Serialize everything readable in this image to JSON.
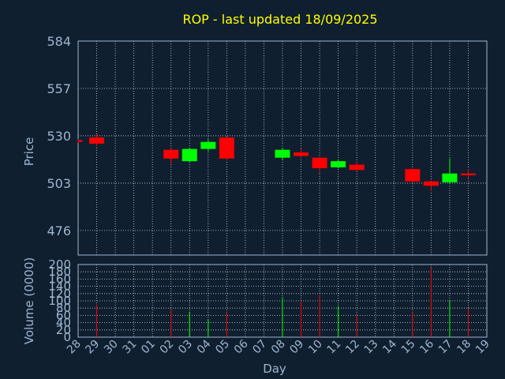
{
  "chart_data": {
    "type": "candlestick",
    "title": "ROP - last updated 18/09/2025",
    "xlabel": "Day",
    "colors": {
      "up": "#00ff00",
      "down": "#ff0000",
      "background": "#0f1f30",
      "text": "#9fb6cf",
      "title": "#ffff00",
      "grid": "#ffffff"
    },
    "x_ticks": [
      "28",
      "29",
      "30",
      "31",
      "01",
      "02",
      "03",
      "04",
      "05",
      "06",
      "07",
      "08",
      "09",
      "10",
      "11",
      "12",
      "13",
      "14",
      "15",
      "16",
      "17",
      "18",
      "19"
    ],
    "price_panel": {
      "ylabel": "Price",
      "ylim": [
        462,
        584
      ],
      "y_ticks": [
        584,
        557,
        530,
        503,
        476
      ]
    },
    "volume_panel": {
      "ylabel": "Volume (0000)",
      "ylim": [
        0,
        200
      ],
      "y_ticks": [
        0,
        20,
        40,
        60,
        80,
        100,
        120,
        140,
        160,
        180,
        200
      ]
    },
    "candles": [
      {
        "day": "28",
        "open": 527.5,
        "high": 528.0,
        "low": 526.0,
        "close": 526.5,
        "volume": 0
      },
      {
        "day": "29",
        "open": 529.0,
        "high": 531.0,
        "low": 524.0,
        "close": 525.5,
        "volume": 90
      },
      {
        "day": "02",
        "open": 522.0,
        "high": 523.0,
        "low": 514.0,
        "close": 517.0,
        "volume": 75
      },
      {
        "day": "03",
        "open": 515.5,
        "high": 523.0,
        "low": 515.0,
        "close": 522.5,
        "volume": 70
      },
      {
        "day": "04",
        "open": 522.5,
        "high": 528.0,
        "low": 521.0,
        "close": 526.5,
        "volume": 48
      },
      {
        "day": "05",
        "open": 529.0,
        "high": 529.5,
        "low": 516.0,
        "close": 517.0,
        "volume": 70
      },
      {
        "day": "08",
        "open": 517.5,
        "high": 523.0,
        "low": 516.5,
        "close": 522.0,
        "volume": 110
      },
      {
        "day": "09",
        "open": 520.5,
        "high": 522.5,
        "low": 517.5,
        "close": 518.5,
        "volume": 100
      },
      {
        "day": "10",
        "open": 517.5,
        "high": 518.0,
        "low": 508.5,
        "close": 511.5,
        "volume": 115
      },
      {
        "day": "11",
        "open": 512.0,
        "high": 516.5,
        "low": 511.5,
        "close": 515.5,
        "volume": 85
      },
      {
        "day": "12",
        "open": 513.5,
        "high": 515.0,
        "low": 510.0,
        "close": 510.5,
        "volume": 60
      },
      {
        "day": "15",
        "open": 511.0,
        "high": 511.5,
        "low": 503.0,
        "close": 504.0,
        "volume": 70
      },
      {
        "day": "16",
        "open": 504.0,
        "high": 504.5,
        "low": 498.5,
        "close": 501.5,
        "volume": 192
      },
      {
        "day": "17",
        "open": 503.5,
        "high": 517.0,
        "low": 502.5,
        "close": 508.5,
        "volume": 100
      },
      {
        "day": "18",
        "open": 508.5,
        "high": 511.0,
        "low": 505.5,
        "close": 507.5,
        "volume": 80
      }
    ]
  }
}
